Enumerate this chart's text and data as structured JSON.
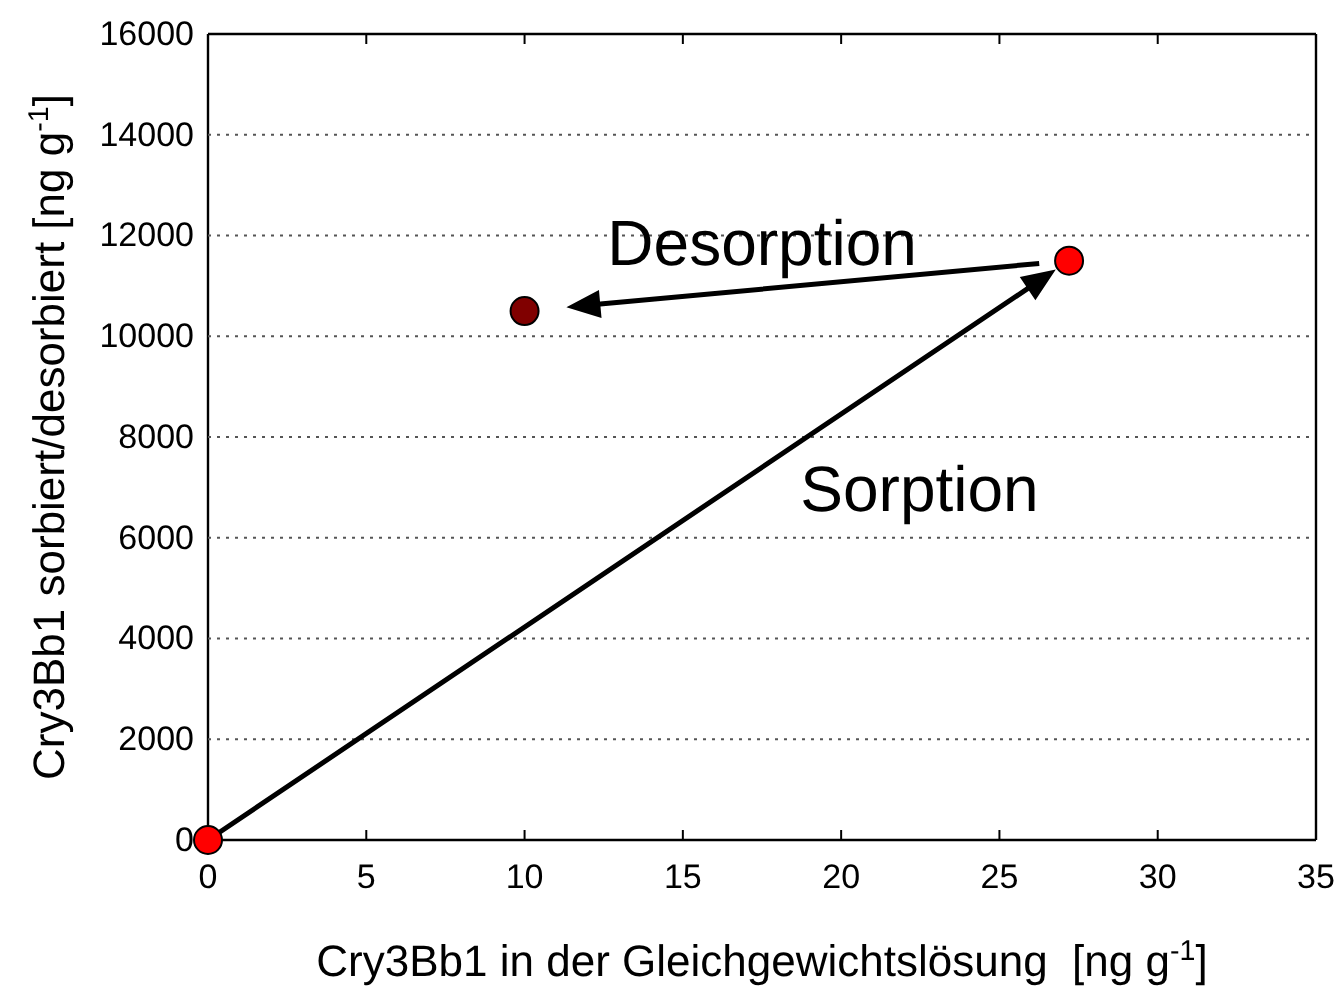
{
  "chart_data": {
    "type": "scatter",
    "xlabel": "Cry3Bb1 in der Gleichgewichtslösung  [ng g$^{-1}$]",
    "ylabel": "Cry3Bb1 sorbiert/desorbiert [ng g$^{-1}$]",
    "x": [
      0,
      27.2,
      10
    ],
    "values": [
      0,
      11500,
      10500
    ],
    "colors": [
      "#ff0000",
      "#ff0000",
      "#800000"
    ],
    "marker": "circle",
    "xlim": [
      0,
      35
    ],
    "xticks": [
      0,
      5,
      10,
      15,
      20,
      25,
      30,
      35
    ],
    "ylim": [
      0,
      16000
    ],
    "yticks": [
      0,
      2000,
      4000,
      6000,
      8000,
      10000,
      12000,
      14000,
      16000
    ],
    "grid": "y",
    "annotations": [
      "Sorption",
      "Desorption"
    ]
  }
}
